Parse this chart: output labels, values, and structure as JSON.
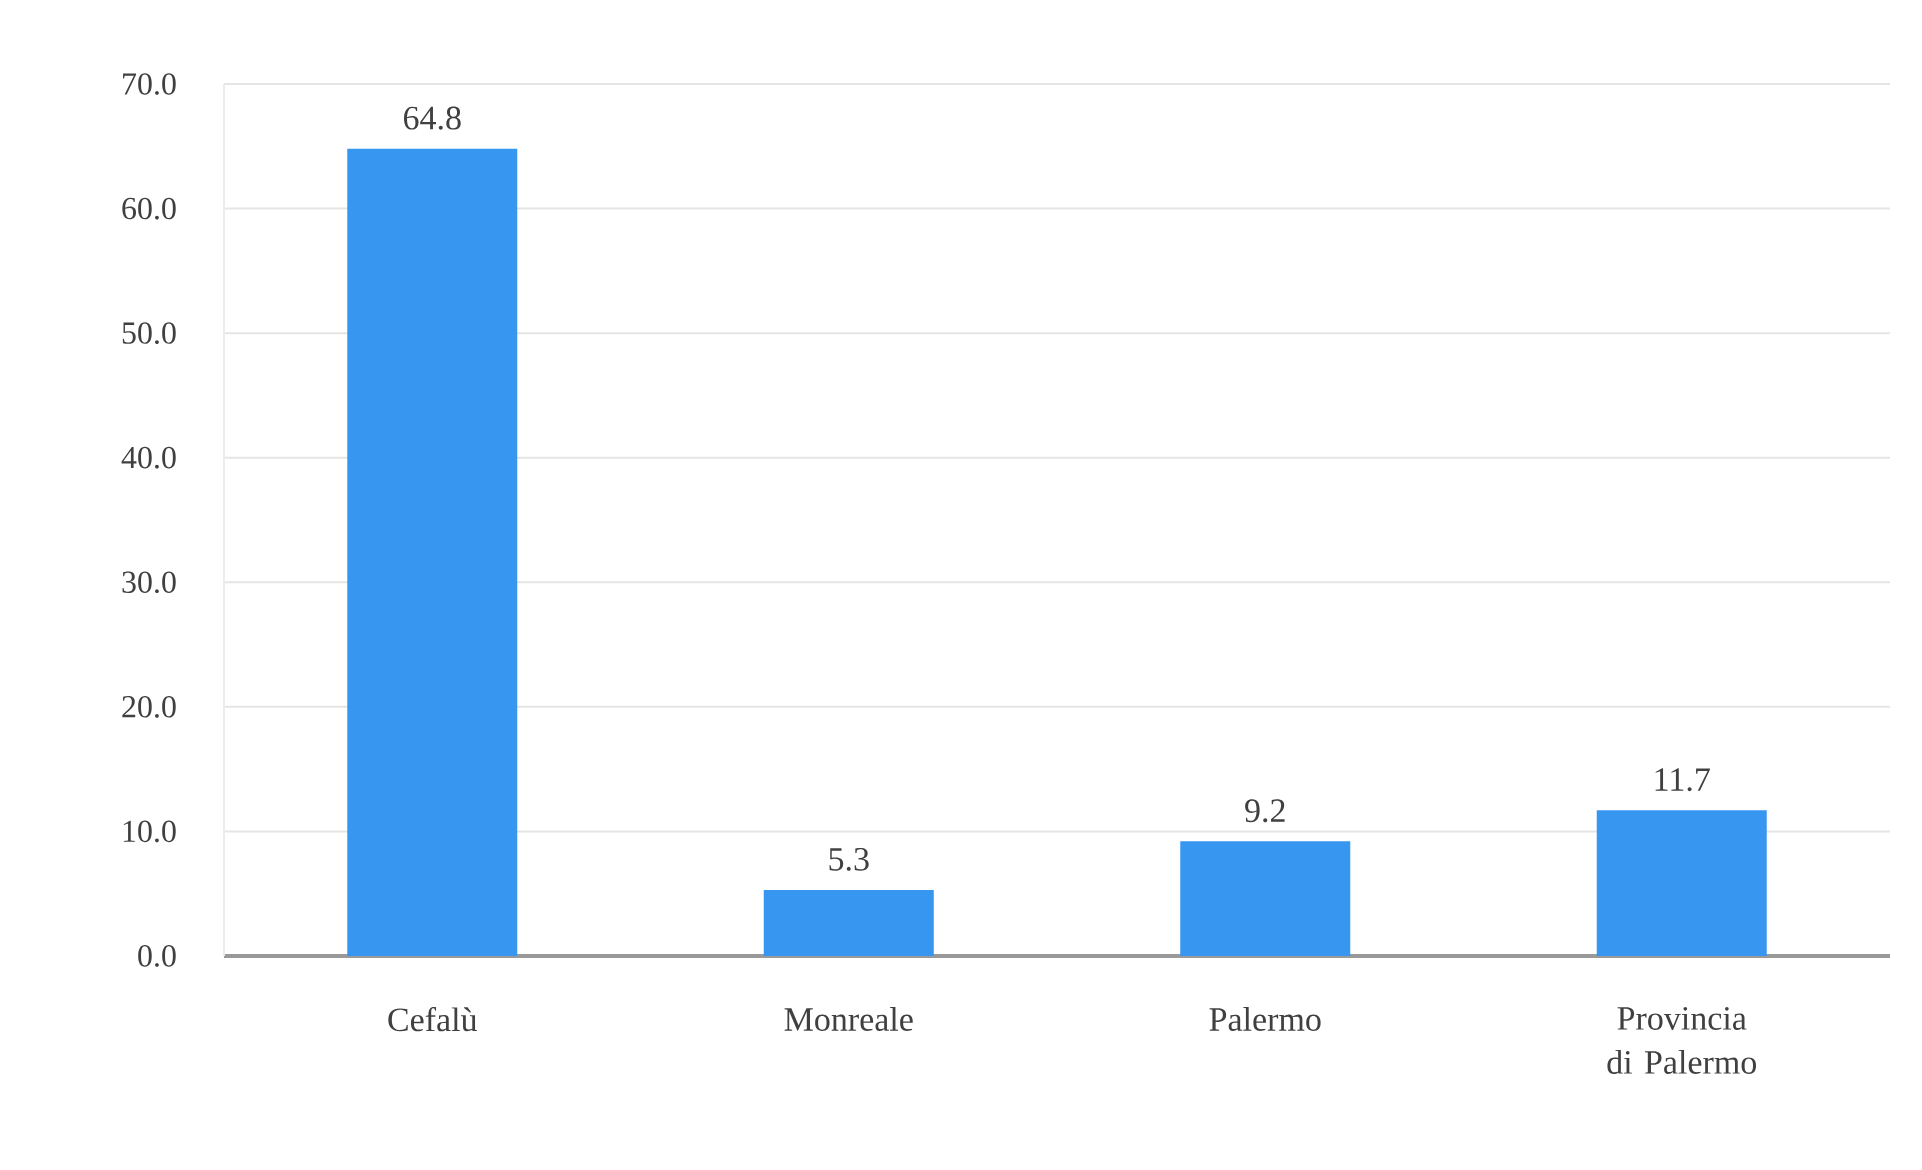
{
  "chart_data": {
    "type": "bar",
    "categories": [
      "Cefalù",
      "Monreale",
      "Palermo",
      "Provincia di Palermo"
    ],
    "values": [
      64.8,
      5.3,
      9.2,
      11.7
    ],
    "color": "#3796f0",
    "ylim": [
      0,
      70
    ],
    "yticks": [
      {
        "value": 0,
        "label": "0.0"
      },
      {
        "value": 10,
        "label": "10.0"
      },
      {
        "value": 20,
        "label": "20.0"
      },
      {
        "value": 30,
        "label": "30.0"
      },
      {
        "value": 40,
        "label": "40.0"
      },
      {
        "value": 50,
        "label": "50.0"
      },
      {
        "value": 60,
        "label": "60.0"
      },
      {
        "value": 70,
        "label": "70.0"
      }
    ],
    "grid": "y",
    "data_labels": true
  }
}
